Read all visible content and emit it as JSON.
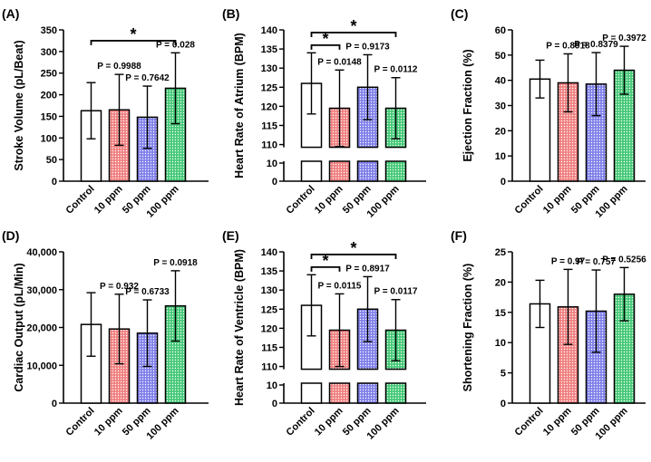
{
  "colors": {
    "control": "#ffffff",
    "ppm10": "#ee6a6a",
    "ppm50": "#7d7de8",
    "ppm100": "#3cc770"
  },
  "chart_data": [
    {
      "type": "bar",
      "panel": "(A)",
      "ylabel": "Stroke Volume (pL/Beat)",
      "categories": [
        "Control",
        "10 ppm",
        "50 ppm",
        "100 ppm"
      ],
      "values": [
        163,
        165,
        148,
        215
      ],
      "errors": [
        65,
        82,
        72,
        82
      ],
      "pvalues": [
        "",
        "P = 0.9988",
        "P = 0.7642",
        "P = 0.028"
      ],
      "ylim": [
        0,
        350
      ],
      "ticks": [
        0,
        50,
        100,
        150,
        200,
        250,
        300,
        350
      ],
      "tick_labels": [
        "0",
        "50",
        "100",
        "150",
        "200",
        "250",
        "300",
        "350"
      ],
      "sig": [
        {
          "from": 0,
          "to": 3,
          "y": 325,
          "label": "*"
        }
      ]
    },
    {
      "type": "bar",
      "panel": "(B)",
      "ylabel": "Heart Rate of Atrium (BPM)",
      "categories": [
        "Control",
        "10 ppm",
        "50 ppm",
        "100 ppm"
      ],
      "values": [
        126,
        119.5,
        125,
        119.5
      ],
      "errors": [
        8,
        10,
        8.5,
        8
      ],
      "pvalues": [
        "",
        "P = 0.0148",
        "P = 0.9173",
        "P = 0.0112"
      ],
      "ylim": [
        0,
        140
      ],
      "broken_axis": true,
      "ticks": [
        0,
        10,
        110,
        115,
        120,
        125,
        130,
        135,
        140
      ],
      "tick_labels": [
        "0",
        "10",
        "110",
        "115",
        "120",
        "125",
        "130",
        "135",
        "140"
      ],
      "sig": [
        {
          "from": 0,
          "to": 1,
          "y": 136,
          "label": "*"
        },
        {
          "from": 0,
          "to": 3,
          "y": 139.3,
          "label": "*"
        }
      ]
    },
    {
      "type": "bar",
      "panel": "(C)",
      "ylabel": "Ejection Fraction (%)",
      "categories": [
        "Control",
        "10 ppm",
        "50 ppm",
        "100 ppm"
      ],
      "values": [
        40.5,
        39,
        38.5,
        44
      ],
      "errors": [
        7.5,
        11.5,
        12.5,
        9.5
      ],
      "pvalues": [
        "",
        "P = 0.8918",
        "P = 0.8379",
        "P = 0.3972"
      ],
      "ylim": [
        0,
        60
      ],
      "ticks": [
        0,
        10,
        20,
        30,
        40,
        50,
        60
      ],
      "tick_labels": [
        "0",
        "10",
        "20",
        "30",
        "40",
        "50",
        "60"
      ],
      "sig": []
    },
    {
      "type": "bar",
      "panel": "(D)",
      "ylabel": "Cardiac Output (pL/Min)",
      "categories": [
        "Control",
        "10 ppm",
        "50 ppm",
        "100 ppm"
      ],
      "values": [
        20800,
        19600,
        18500,
        25700
      ],
      "errors": [
        8400,
        9200,
        8800,
        9300
      ],
      "pvalues": [
        "",
        "P = 0.932",
        "P = 0.6733",
        "P = 0.0918"
      ],
      "ylim": [
        0,
        40000
      ],
      "ticks": [
        0,
        10000,
        20000,
        30000,
        40000
      ],
      "tick_labels": [
        "0",
        "10,000",
        "20,000",
        "30,000",
        "40,000"
      ],
      "sig": []
    },
    {
      "type": "bar",
      "panel": "(E)",
      "ylabel": "Heart Rate of Ventricle (BPM)",
      "categories": [
        "Control",
        "10 ppm",
        "50 ppm",
        "100 ppm"
      ],
      "values": [
        126,
        119.5,
        125,
        119.5
      ],
      "errors": [
        8,
        9.5,
        8.5,
        8
      ],
      "pvalues": [
        "",
        "P = 0.0115",
        "P = 0.8917",
        "P = 0.0117"
      ],
      "ylim": [
        0,
        140
      ],
      "broken_axis": true,
      "ticks": [
        0,
        10,
        110,
        115,
        120,
        125,
        130,
        135,
        140
      ],
      "tick_labels": [
        "0",
        "10",
        "110",
        "115",
        "120",
        "125",
        "130",
        "135",
        "140"
      ],
      "sig": [
        {
          "from": 0,
          "to": 1,
          "y": 136,
          "label": "*"
        },
        {
          "from": 0,
          "to": 3,
          "y": 139.3,
          "label": "*"
        }
      ]
    },
    {
      "type": "bar",
      "panel": "(F)",
      "ylabel": "Shortening Fraction (%)",
      "categories": [
        "Control",
        "10 ppm",
        "50 ppm",
        "100 ppm"
      ],
      "values": [
        16.4,
        15.9,
        15.2,
        18
      ],
      "errors": [
        3.9,
        6.2,
        6.8,
        4.4
      ],
      "pvalues": [
        "",
        "P = 0.97",
        "P = 0.757",
        "P = 0.5256"
      ],
      "ylim": [
        0,
        25
      ],
      "ticks": [
        0,
        5,
        10,
        15,
        20,
        25
      ],
      "tick_labels": [
        "0",
        "5",
        "10",
        "15",
        "20",
        "25"
      ],
      "sig": []
    }
  ]
}
